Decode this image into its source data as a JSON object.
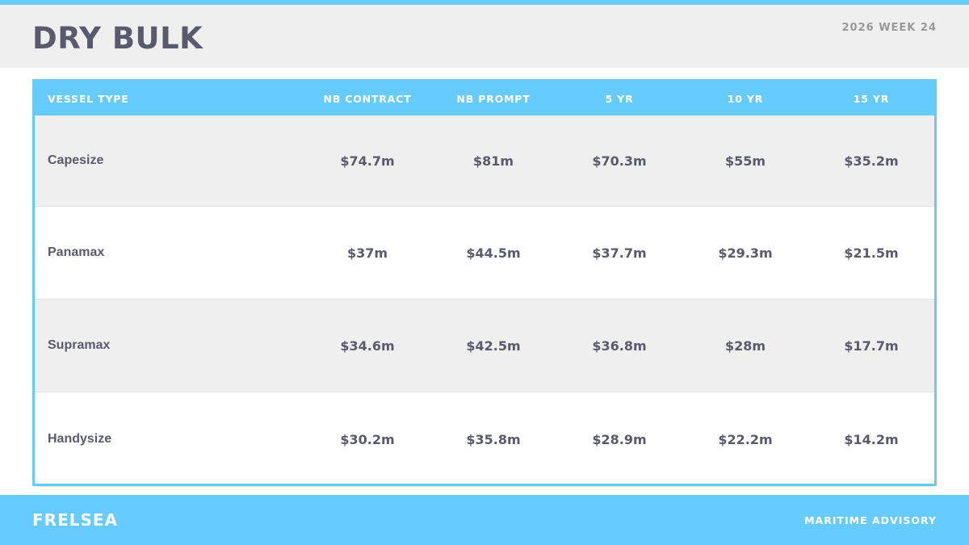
{
  "header": {
    "title": "DRY BULK",
    "subtitle": "2026 WEEK 24"
  },
  "table": {
    "columns": [
      "VESSEL TYPE",
      "NB CONTRACT",
      "NB PROMPT",
      "5 YR",
      "10 YR",
      "15 YR"
    ],
    "rows": [
      [
        "Capesize",
        "$74.7m",
        "$81m",
        "$70.3m",
        "$55m",
        "$35.2m"
      ],
      [
        "Panamax",
        "$37m",
        "$44.5m",
        "$37.7m",
        "$29.3m",
        "$21.5m"
      ],
      [
        "Supramax",
        "$34.6m",
        "$42.5m",
        "$36.8m",
        "$28m",
        "$17.7m"
      ],
      [
        "Handysize",
        "$30.2m",
        "$35.8m",
        "$28.9m",
        "$22.2m",
        "$14.2m"
      ]
    ]
  },
  "footer": {
    "brand": "FRELSEA",
    "tagline": "MARITIME ADVISORY"
  }
}
